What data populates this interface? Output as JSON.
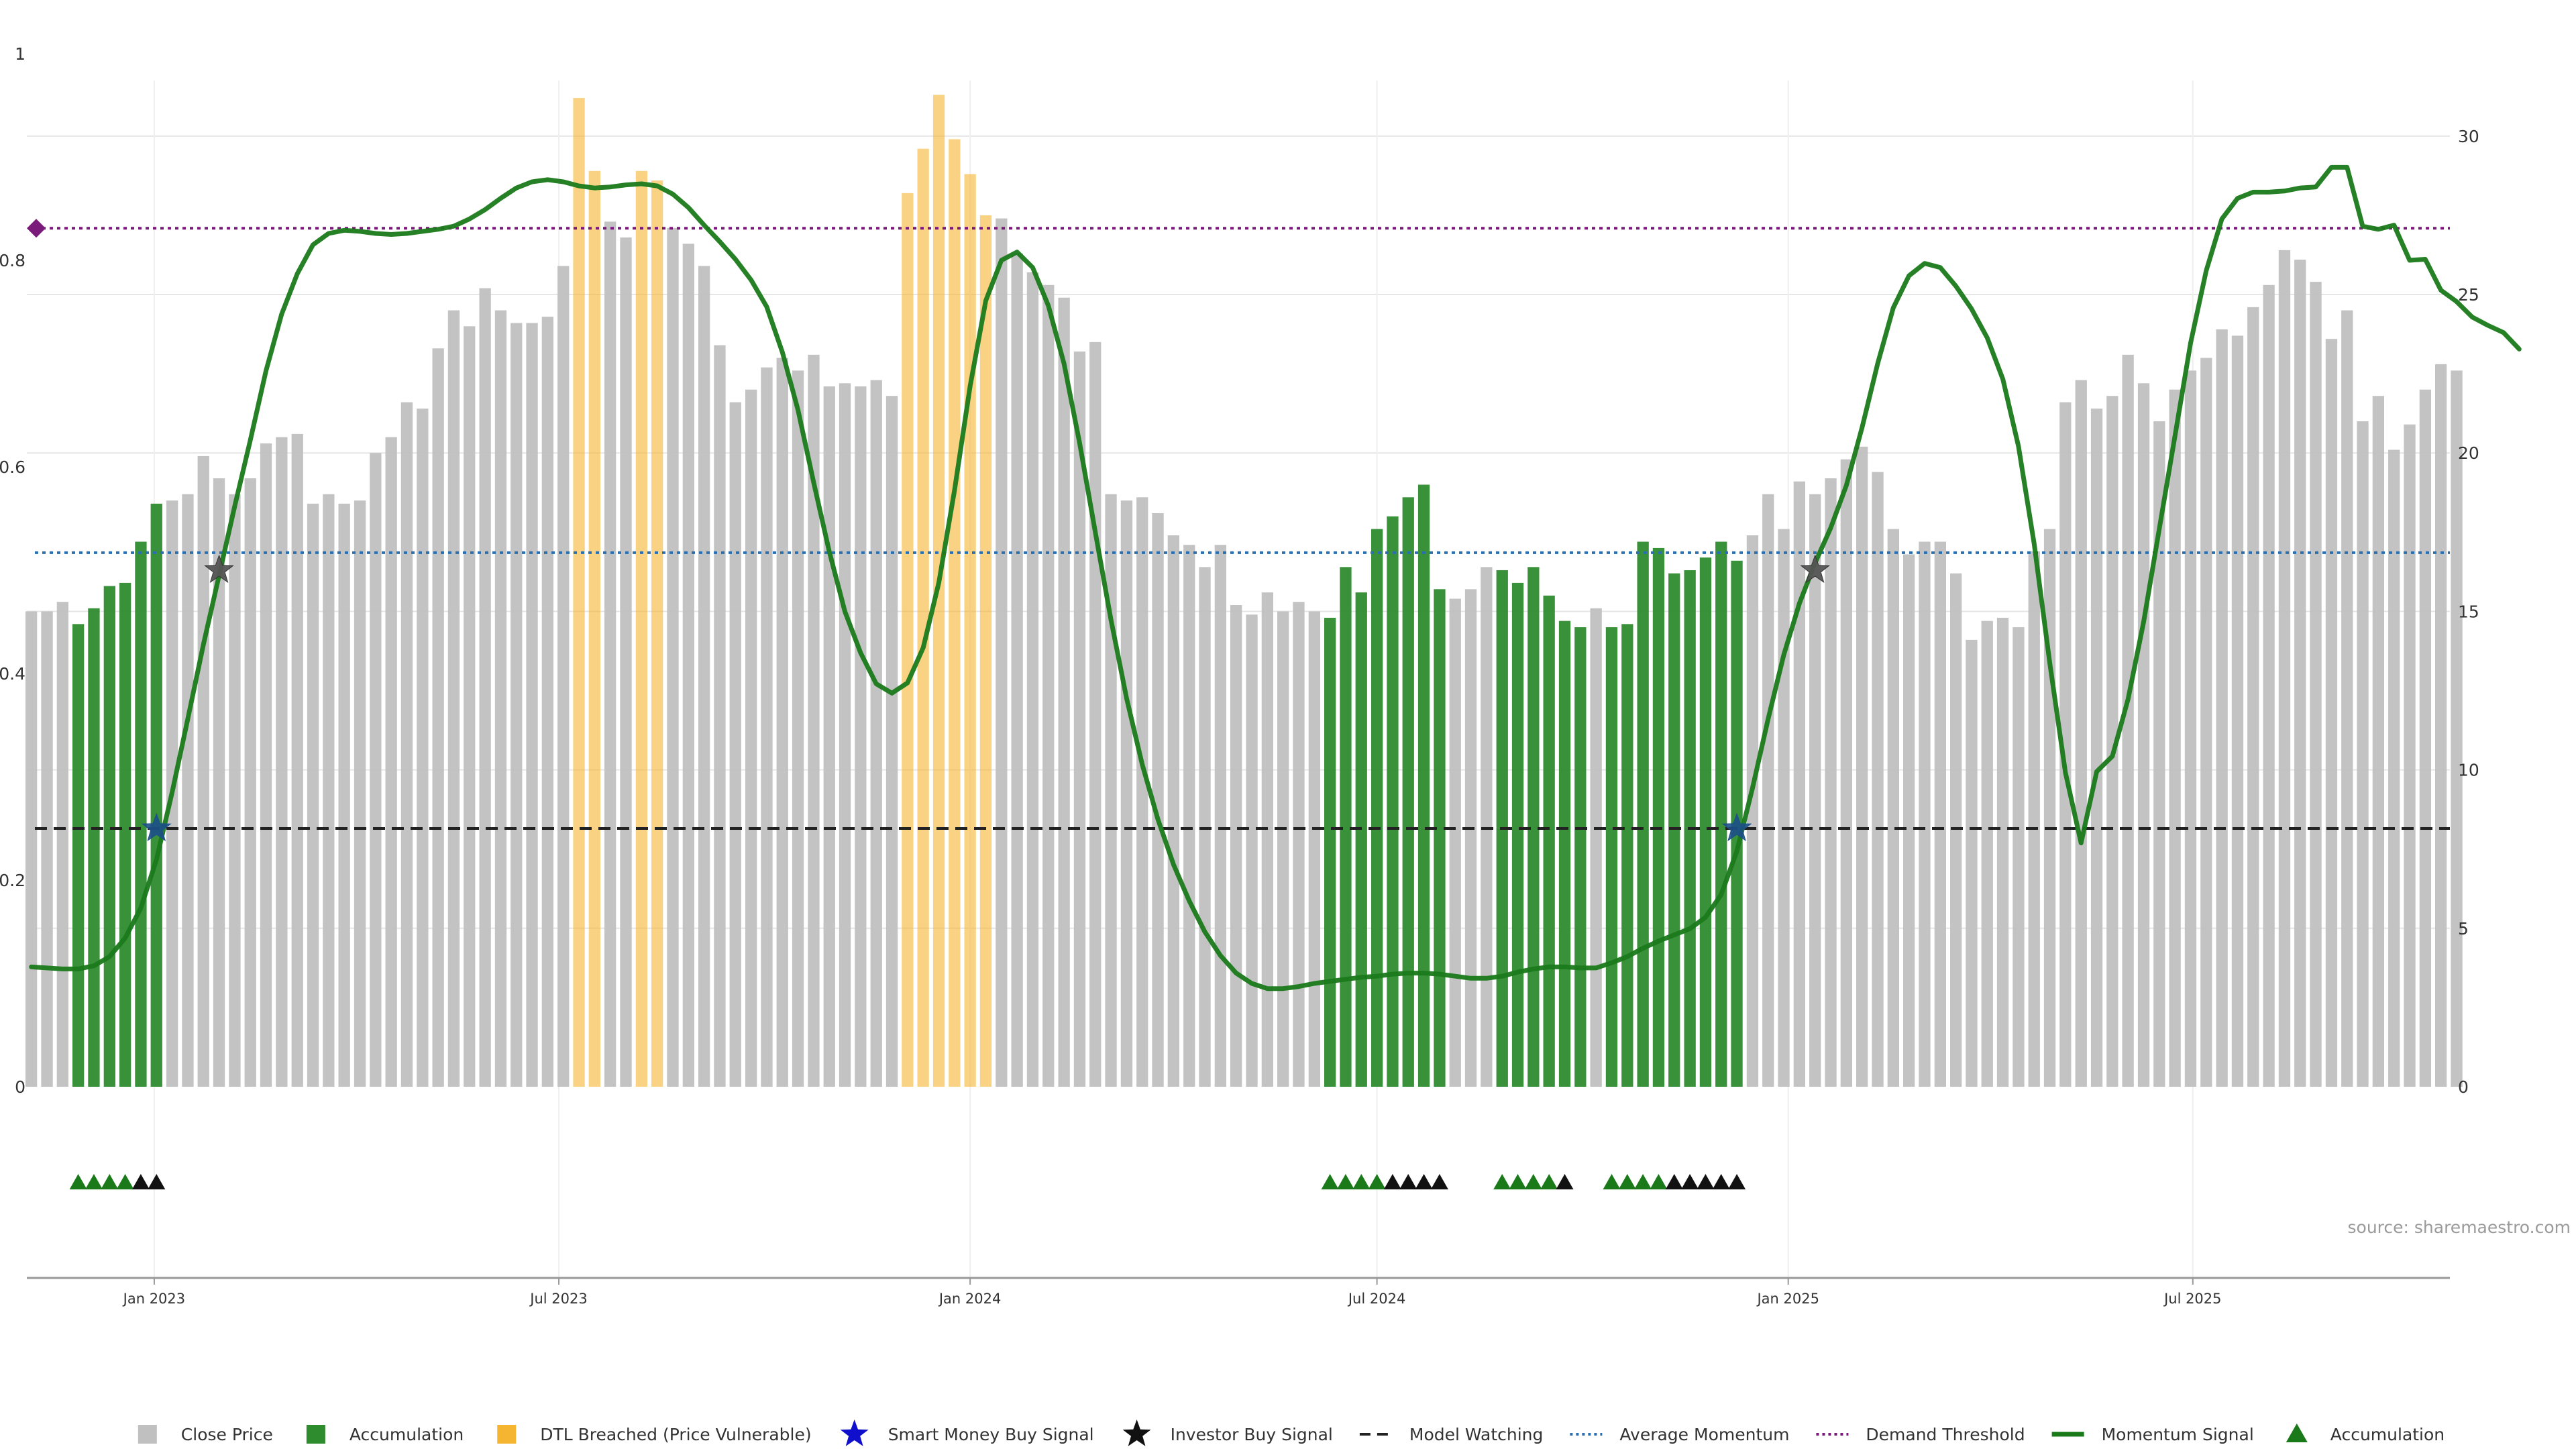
{
  "chart_data": {
    "type": "bar",
    "title": "",
    "xlabel": "",
    "ylabel": "",
    "source": "source: sharemaestro.com",
    "left_axis": {
      "ylim": [
        0,
        1
      ],
      "ticks": [
        "0",
        "0.2",
        "0.4",
        "0.6",
        "0.8",
        "1"
      ],
      "tick_values": [
        0,
        0.2,
        0.4,
        0.6,
        0.8,
        1
      ]
    },
    "right_axis": {
      "ylim": [
        0,
        32.6
      ],
      "ticks": [
        "0",
        "5",
        "10",
        "15",
        "20",
        "25",
        "30"
      ],
      "tick_values": [
        0,
        5,
        10,
        15,
        20,
        25,
        30
      ]
    },
    "x_ticks": [
      {
        "label": "Jan 2023",
        "date": "2023-01-01"
      },
      {
        "label": "Jul 2023",
        "date": "2023-07-01"
      },
      {
        "label": "Jan 2024",
        "date": "2024-01-01"
      },
      {
        "label": "Jul 2024",
        "date": "2024-07-01"
      },
      {
        "label": "Jan 2025",
        "date": "2025-01-01"
      },
      {
        "label": "Jul 2025",
        "date": "2025-07-01"
      }
    ],
    "x_range": [
      "2022-11-05",
      "2025-10-24"
    ],
    "bars": {
      "name": "Close Price",
      "start_week": "2022-11-07",
      "values": [
        15.0,
        15.0,
        15.3,
        14.6,
        15.1,
        15.8,
        15.9,
        17.2,
        18.4,
        18.5,
        18.7,
        19.9,
        19.2,
        18.7,
        19.2,
        20.3,
        20.5,
        20.6,
        18.4,
        18.7,
        18.4,
        18.5,
        20.0,
        20.5,
        21.6,
        21.4,
        23.3,
        24.5,
        24.0,
        25.2,
        24.5,
        24.1,
        24.1,
        24.3,
        25.9,
        31.2,
        28.9,
        27.3,
        26.8,
        28.9,
        28.6,
        27.1,
        26.6,
        25.9,
        23.4,
        21.6,
        22.0,
        22.7,
        23.0,
        22.6,
        23.1,
        22.1,
        22.2,
        22.1,
        22.3,
        21.8,
        28.2,
        29.6,
        31.3,
        29.9,
        28.8,
        27.5,
        27.4,
        26.3,
        25.7,
        25.3,
        24.9,
        23.2,
        23.5,
        18.7,
        18.5,
        18.6,
        18.1,
        17.4,
        17.1,
        16.4,
        17.1,
        15.2,
        14.9,
        15.6,
        15.0,
        15.3,
        15.0,
        14.8,
        16.4,
        15.6,
        17.6,
        18.0,
        18.6,
        19.0,
        15.7,
        15.4,
        15.7,
        16.4,
        16.3,
        15.9,
        16.4,
        15.5,
        14.7,
        14.5,
        15.1,
        14.5,
        14.6,
        17.2,
        17.0,
        16.2,
        16.3,
        16.7,
        17.2,
        16.6,
        17.4,
        18.7,
        17.6,
        19.1,
        18.7,
        19.2,
        19.8,
        20.2,
        19.4,
        17.6,
        16.8,
        17.2,
        17.2,
        16.2,
        14.1,
        14.7,
        14.8,
        14.5,
        16.9,
        17.6,
        21.6,
        22.3,
        21.4,
        21.8,
        23.1,
        22.2,
        21.0,
        22.0,
        22.6,
        23.0,
        23.9,
        23.7,
        24.6,
        25.3,
        26.4,
        26.1,
        25.4,
        23.6,
        24.5,
        21.0,
        21.8,
        20.1,
        20.9,
        22.0,
        22.8,
        22.6
      ],
      "categories": [
        "accumulation",
        "dtl"
      ],
      "category_labels": {
        "accumulation": "Accumulation",
        "dtl": "DTL Breached (Price Vulnerable)"
      },
      "accumulation_weeks": [
        3,
        4,
        5,
        6,
        7,
        8,
        83,
        84,
        85,
        86,
        87,
        88,
        89,
        90,
        94,
        95,
        96,
        97,
        98,
        99,
        101,
        102,
        103,
        104,
        105,
        106,
        107,
        108,
        109
      ],
      "dtl_weeks": [
        35,
        36,
        39,
        40,
        56,
        57,
        58,
        59,
        60,
        61
      ]
    },
    "momentum": {
      "name": "Momentum Signal",
      "values": [
        0.116,
        0.115,
        0.114,
        0.114,
        0.117,
        0.126,
        0.144,
        0.173,
        0.22,
        0.285,
        0.356,
        0.428,
        0.495,
        0.562,
        0.626,
        0.693,
        0.748,
        0.787,
        0.815,
        0.826,
        0.829,
        0.828,
        0.826,
        0.825,
        0.826,
        0.828,
        0.83,
        0.833,
        0.84,
        0.849,
        0.86,
        0.87,
        0.876,
        0.878,
        0.876,
        0.872,
        0.87,
        0.871,
        0.873,
        0.874,
        0.872,
        0.864,
        0.851,
        0.834,
        0.818,
        0.801,
        0.781,
        0.755,
        0.711,
        0.655,
        0.585,
        0.518,
        0.46,
        0.42,
        0.39,
        0.381,
        0.391,
        0.425,
        0.488,
        0.577,
        0.678,
        0.761,
        0.8,
        0.808,
        0.793,
        0.756,
        0.7,
        0.623,
        0.537,
        0.452,
        0.376,
        0.312,
        0.259,
        0.215,
        0.18,
        0.15,
        0.127,
        0.11,
        0.1,
        0.095,
        0.095,
        0.097,
        0.1,
        0.102,
        0.104,
        0.106,
        0.107,
        0.109,
        0.11,
        0.11,
        0.109,
        0.107,
        0.105,
        0.105,
        0.107,
        0.111,
        0.114,
        0.116,
        0.116,
        0.115,
        0.115,
        0.12,
        0.126,
        0.134,
        0.141,
        0.147,
        0.153,
        0.164,
        0.186,
        0.228,
        0.289,
        0.356,
        0.418,
        0.468,
        0.507,
        0.541,
        0.582,
        0.638,
        0.7,
        0.754,
        0.785,
        0.797,
        0.793,
        0.775,
        0.753,
        0.725,
        0.685,
        0.62,
        0.526,
        0.41,
        0.304,
        0.236,
        0.305,
        0.32,
        0.375,
        0.45,
        0.54,
        0.63,
        0.72,
        0.79,
        0.84,
        0.86,
        0.866,
        0.866,
        0.867,
        0.87,
        0.871,
        0.89,
        0.89,
        0.833,
        0.83,
        0.834,
        0.8,
        0.801,
        0.771,
        0.76,
        0.745,
        0.737,
        0.73,
        0.714
      ]
    },
    "reference_lines": [
      {
        "name": "Model Watching",
        "value": 0.25,
        "axis": "left",
        "style": "dashed",
        "color": "#222222"
      },
      {
        "name": "Average Momentum",
        "value": 0.517,
        "axis": "left",
        "style": "dotted",
        "color": "#2a6fb0"
      },
      {
        "name": "Demand Threshold",
        "value": 0.831,
        "axis": "left",
        "style": "dotted",
        "color": "#7a1a7a"
      }
    ],
    "signal_markers": [
      {
        "name": "Smart Money Buy Signal",
        "week": 8,
        "value": 0.25
      },
      {
        "name": "Smart Money Buy Signal",
        "week": 109,
        "value": 0.25
      },
      {
        "name": "Investor Buy Signal",
        "week": 12,
        "value": 0.5
      },
      {
        "name": "Investor Buy Signal",
        "week": 114,
        "value": 0.5
      }
    ],
    "accumulation_triangle_weeks": {
      "green": [
        3,
        4,
        5,
        6,
        83,
        84,
        85,
        86,
        94,
        95,
        96,
        97,
        101,
        102,
        103,
        104
      ],
      "black": [
        7,
        8,
        87,
        88,
        89,
        90,
        98,
        105,
        106,
        107,
        108,
        109
      ]
    },
    "threshold_marker": {
      "name": "Demand Threshold",
      "value": 0.831
    },
    "legend": {
      "placement": "bottom",
      "items": [
        {
          "label": "Close Price",
          "symbol": "square",
          "color": "#c0c0c0"
        },
        {
          "label": "Accumulation",
          "symbol": "square",
          "color": "#2e8b2e"
        },
        {
          "label": "DTL Breached (Price Vulnerable)",
          "symbol": "square",
          "color": "#f5b531"
        },
        {
          "label": "Smart Money Buy Signal",
          "symbol": "star",
          "color": "#1010cc"
        },
        {
          "label": "Investor Buy Signal",
          "symbol": "star",
          "color": "#111111"
        },
        {
          "label": "Model Watching",
          "symbol": "dash",
          "color": "#222222"
        },
        {
          "label": "Average Momentum",
          "symbol": "dot",
          "color": "#2a6fb0"
        },
        {
          "label": "Demand Threshold",
          "symbol": "dot",
          "color": "#7a1a7a"
        },
        {
          "label": "Momentum Signal",
          "symbol": "line",
          "color": "#1a7a1a"
        },
        {
          "label": "Accumulation",
          "symbol": "triangle",
          "color": "#1a7a1a"
        }
      ]
    },
    "colors": {
      "close_price": "#c0c0c0",
      "accumulation": "#2e8b2e",
      "dtl": "#f5b531",
      "momentum": "#1a7a1a",
      "smart_money": "#1010cc",
      "investor": "#111111",
      "grid": "#e6e6e6",
      "axis": "#999999"
    },
    "grid": true
  }
}
